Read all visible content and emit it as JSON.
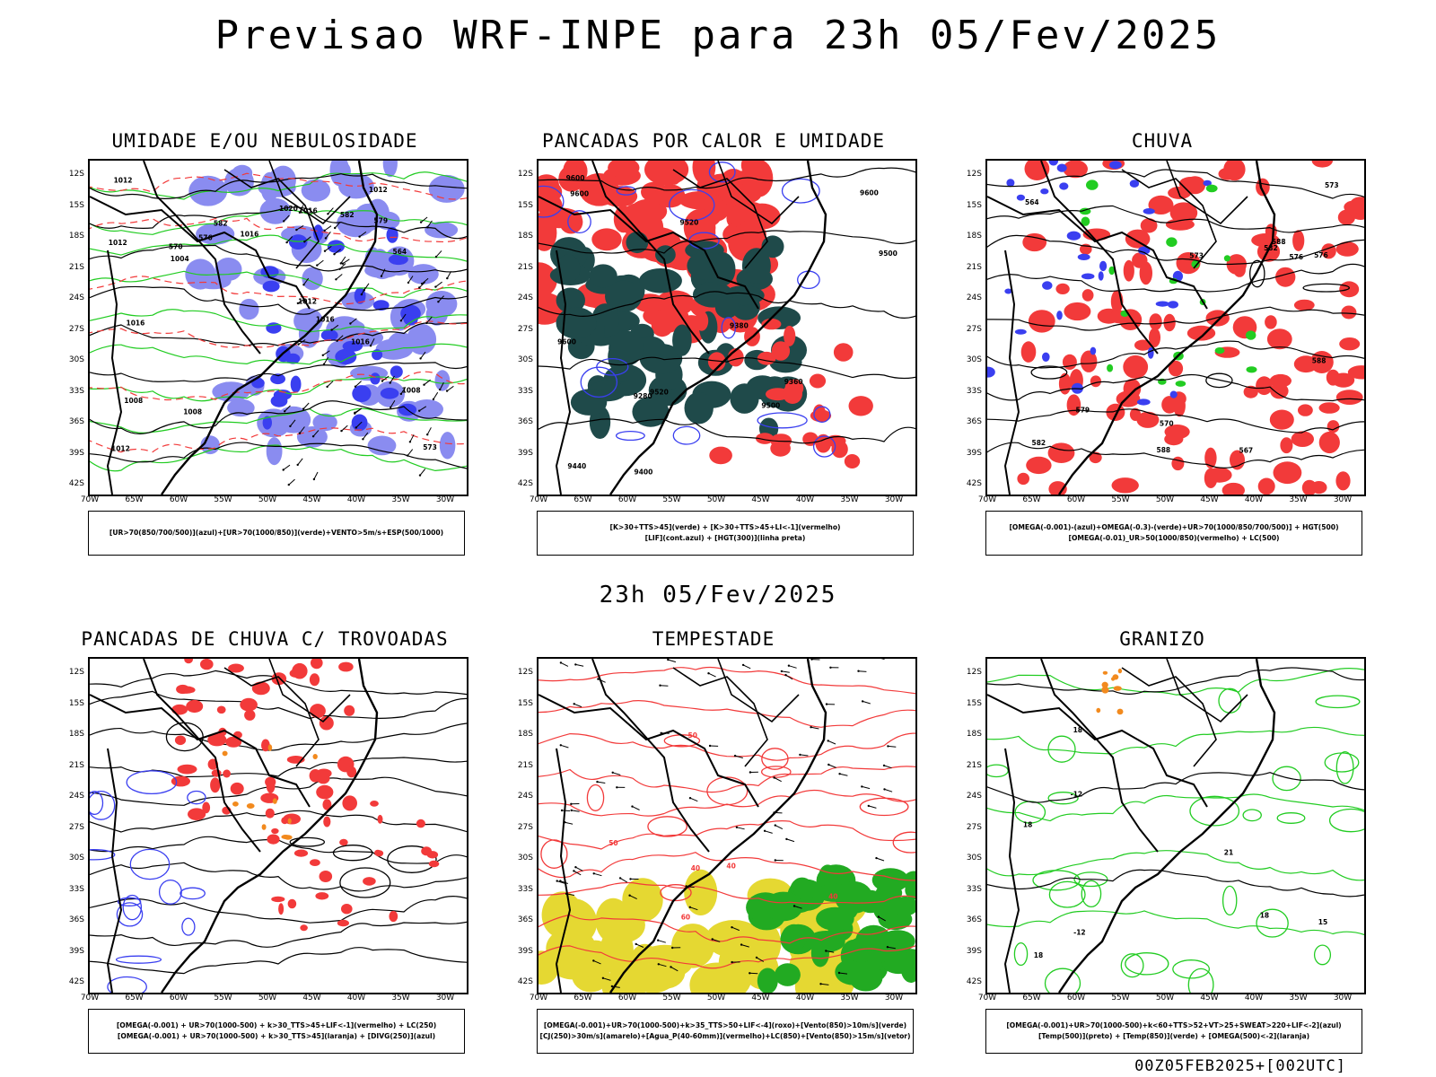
{
  "header": {
    "title": "Previsao WRF-INPE  para 23h 05/Fev/2025"
  },
  "middle_date": "23h 05/Fev/2025",
  "footer": "00Z05FEB2025+[002UTC]",
  "axes": {
    "lat_ticks": [
      "12S",
      "15S",
      "18S",
      "21S",
      "24S",
      "27S",
      "30S",
      "33S",
      "36S",
      "39S",
      "42S"
    ],
    "lon_ticks": [
      "70W",
      "65W",
      "60W",
      "55W",
      "50W",
      "45W",
      "40W",
      "35W",
      "30W"
    ]
  },
  "colors": {
    "blue_fill": "#8a8cf0",
    "blue_dark": "#3a3ff0",
    "green": "#22cc22",
    "red": "#f23a3a",
    "teal": "#1f4a4a",
    "orange": "#f28a1e",
    "yellow": "#e5d832",
    "black": "#000000"
  },
  "panels": [
    {
      "id": "p1",
      "title": "UMIDADE E/OU NEBULOSIDADE",
      "legend": [
        "[UR>70(850/700/500)](azul)+[UR>70(1000/850)](verde)+VENTO>5m/s+ESP(500/1000)"
      ],
      "contour_labels": [
        "1012",
        "1008",
        "1016",
        "1016",
        "1004",
        "1008",
        "1012",
        "1012",
        "1016",
        "1020",
        "1016",
        "1012",
        "1008",
        "1012",
        "1016",
        "576",
        "582",
        "579",
        "573",
        "570",
        "564",
        "582"
      ]
    },
    {
      "id": "p2",
      "title": "PANCADAS POR CALOR E UMIDADE",
      "legend": [
        "[K>30+TTS>45](verde) + [K>30+TTS>45+LI<-1](vermelho)",
        "[LIF](cont.azul) + [HGT(300)](linha preta)"
      ],
      "contour_labels": [
        "9600",
        "9600",
        "9600",
        "9600",
        "9500",
        "9500",
        "9520",
        "9520",
        "9440",
        "9360",
        "9280",
        "9380",
        "9400"
      ]
    },
    {
      "id": "p3",
      "title": "CHUVA",
      "legend": [
        "[OMEGA(-0.001)-(azul)+OMEGA(-0.3)-(verde)+UR>70(1000/850/700/500)] + HGT(500)",
        "[OMEGA(-0.01)_UR>50(1000/850)(vermelho) + LC(500)"
      ],
      "contour_labels": [
        "582",
        "588",
        "588",
        "588",
        "582",
        "579",
        "576",
        "573",
        "570",
        "576",
        "567",
        "564",
        "573"
      ]
    },
    {
      "id": "p4",
      "title": "PANCADAS DE CHUVA C/ TROVOADAS",
      "legend": [
        "[OMEGA(-0.001) + UR>70(1000-500) + k>30_TTS>45+LIF<-1](vermelho) + LC(250)",
        "[OMEGA(-0.001) + UR>70(1000-500) + k>30_TTS>45](laranja) + [DIVG(250)](azul)"
      ],
      "contour_labels": []
    },
    {
      "id": "p5",
      "title": "TEMPESTADE",
      "legend": [
        "[OMEGA(-0.001)+UR>70(1000-500)+k>35_TTS>50+LIF<-4](roxo)+[Vento(850)>10m/s](verde)",
        "[CJ(250)>30m/s](amarelo)+[Agua_P(40-60mm)](vermelho)+LC(850)+[Vento(850)>15m/s](vetor)"
      ],
      "contour_labels": [
        "50",
        "40",
        "40",
        "40",
        "50",
        "60"
      ]
    },
    {
      "id": "p6",
      "title": "GRANIZO",
      "legend": [
        "[OMEGA(-0.001)+UR>70(1000-500)+k<60+TTS>52+VT>25+SWEAT>220+LIF<-2](azul)",
        "[Temp(500)](preto) + [Temp(850)](verde) + [OMEGA(500)<-2](laranja)"
      ],
      "contour_labels": [
        "-12",
        "-12",
        "18",
        "18",
        "18",
        "15",
        "21",
        "18"
      ]
    }
  ]
}
